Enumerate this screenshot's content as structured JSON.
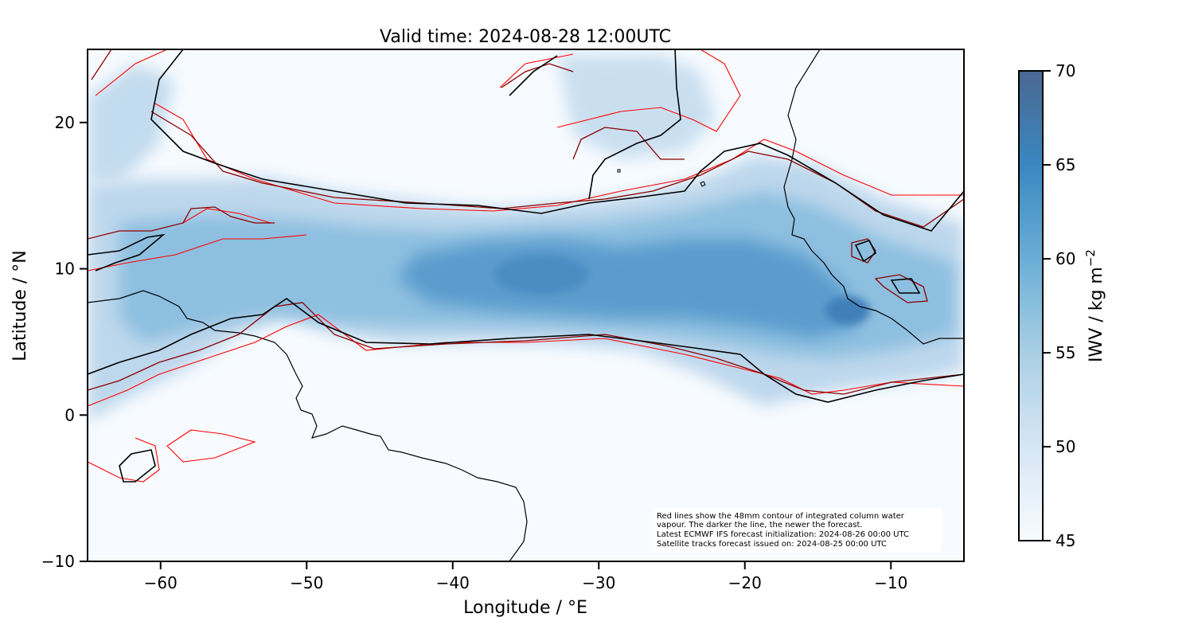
{
  "title": "Valid time: 2024-08-28 12:00UTC",
  "x_axis": {
    "label": "Longitude / °E",
    "range": [
      -65,
      -5
    ],
    "ticks": [
      -60,
      -50,
      -40,
      -30,
      -20,
      -10
    ],
    "tick_labels": [
      "−60",
      "−50",
      "−40",
      "−30",
      "−20",
      "−10"
    ]
  },
  "y_axis": {
    "label": "Latitude / °N",
    "range": [
      -10,
      25
    ],
    "ticks": [
      -10,
      0,
      10,
      20
    ],
    "tick_labels": [
      "−10",
      "0",
      "10",
      "20"
    ]
  },
  "colorbar": {
    "label": "IWV / kg m",
    "label_superscript": "−2",
    "range": [
      45,
      70
    ],
    "ticks": [
      45,
      50,
      55,
      60,
      65,
      70
    ],
    "tick_labels": [
      "45",
      "50",
      "55",
      "60",
      "65",
      "70"
    ],
    "colormap": [
      "#f7fbff",
      "#d6e6f4",
      "#a9cfe5",
      "#6aaed6",
      "#3a87c0",
      "#4a6891"
    ]
  },
  "annotation": {
    "lines": [
      "Red lines show the 48mm contour of integrated column water",
      "vapour. The darker the line, the newer the forecast.",
      "Latest ECMWF IFS forecast initialization: 2024-08-26 00:00 UTC",
      "Satellite tracks forecast issued on: 2024-08-25 00:00 UTC"
    ]
  },
  "contour_colors": [
    "#ff0000",
    "#b00000",
    "#6b0000",
    "#000000"
  ],
  "colors": {
    "coastline": "#000000",
    "background": "#ffffff"
  }
}
